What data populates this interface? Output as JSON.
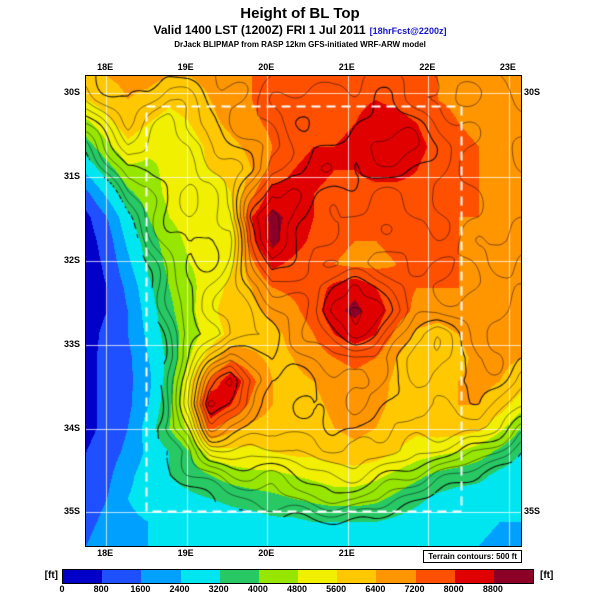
{
  "title": "Height of BL Top",
  "subtitle": {
    "main": "Valid 1400 LST (1200Z) FRI 1 Jul 2011",
    "suffix": "[18hrFcst@2200z]"
  },
  "model_line": "DrJack BLIPMAP from RASP 12km GFS-initiated WRF-ARW model",
  "map": {
    "terrain_note": "Terrain contours: 500 ft",
    "lon_ticks": [
      18,
      19,
      20,
      21,
      22,
      23
    ],
    "lon_labels_top": [
      "18E",
      "19E",
      "20E",
      "21E",
      "22E",
      "23E"
    ],
    "lon_ticks_bottom": [
      18,
      19,
      20,
      21
    ],
    "lon_labels_bottom": [
      "18E",
      "19E",
      "20E",
      "21E"
    ],
    "lat_ticks": [
      30,
      31,
      32,
      33,
      34,
      35
    ],
    "lat_labels_left": [
      "30S",
      "31S",
      "32S",
      "33S",
      "34S",
      "35S"
    ],
    "lat_ticks_right": [
      30,
      35
    ],
    "lat_labels_right": [
      "30S",
      "35S"
    ]
  },
  "colorbar": {
    "unit_left": "[ft]",
    "unit_right": "[ft]",
    "tick_labels": [
      "0",
      "800",
      "1600",
      "2400",
      "3200",
      "4000",
      "4800",
      "5600",
      "6400",
      "7200",
      "8000",
      "8800"
    ],
    "colors": [
      "#0000c8",
      "#1e50ff",
      "#00a0ff",
      "#00e6f0",
      "#28c864",
      "#96e600",
      "#f0f000",
      "#ffc800",
      "#ff9600",
      "#ff5000",
      "#e10000",
      "#8c0028"
    ]
  },
  "chart_data": {
    "type": "heatmap",
    "title": "Height of BL Top",
    "units": "ft",
    "lon_range": [
      17.75,
      23.15
    ],
    "lat_range": [
      29.8,
      35.4
    ],
    "fill_levels_ft": [
      0,
      800,
      1600,
      2400,
      3200,
      4000,
      4800,
      5600,
      6400,
      7200,
      8000,
      8800
    ],
    "terrain_contour_interval_ft": 500,
    "values_scale_ft": 100,
    "values_note": "BL top height in hundreds of feet, grid rows north(30S)->south(35S), cols west(18E)->east(23E)",
    "contour_levels": [
      32,
      36,
      40,
      44,
      48,
      52,
      56,
      60,
      64,
      68,
      72,
      76,
      80,
      84,
      88,
      92
    ],
    "values": [
      [
        62,
        64,
        66,
        66,
        64,
        64,
        66,
        70,
        72,
        74,
        74,
        74,
        74,
        76,
        76,
        74,
        72,
        72,
        70,
        70,
        68,
        66
      ],
      [
        56,
        60,
        64,
        62,
        58,
        60,
        64,
        68,
        72,
        76,
        76,
        76,
        76,
        78,
        80,
        78,
        74,
        72,
        70,
        70,
        68,
        66
      ],
      [
        46,
        54,
        60,
        56,
        52,
        56,
        62,
        66,
        70,
        74,
        78,
        78,
        78,
        80,
        84,
        84,
        80,
        76,
        72,
        70,
        68,
        66
      ],
      [
        36,
        46,
        54,
        50,
        48,
        52,
        58,
        62,
        66,
        72,
        78,
        80,
        80,
        82,
        86,
        86,
        82,
        78,
        74,
        72,
        70,
        66
      ],
      [
        26,
        36,
        46,
        46,
        50,
        54,
        56,
        58,
        64,
        74,
        80,
        82,
        80,
        80,
        82,
        82,
        80,
        76,
        74,
        72,
        70,
        68
      ],
      [
        14,
        26,
        38,
        44,
        50,
        54,
        52,
        56,
        70,
        84,
        84,
        80,
        78,
        78,
        78,
        78,
        78,
        76,
        74,
        72,
        70,
        68
      ],
      [
        6,
        16,
        30,
        40,
        48,
        52,
        50,
        54,
        80,
        90,
        86,
        80,
        76,
        76,
        76,
        76,
        76,
        74,
        72,
        72,
        70,
        68
      ],
      [
        4,
        12,
        26,
        36,
        44,
        50,
        48,
        52,
        78,
        90,
        84,
        78,
        74,
        72,
        72,
        74,
        74,
        74,
        72,
        70,
        70,
        68
      ],
      [
        3,
        10,
        22,
        34,
        42,
        48,
        50,
        54,
        70,
        82,
        78,
        74,
        72,
        70,
        70,
        72,
        74,
        74,
        72,
        70,
        68,
        68
      ],
      [
        3,
        8,
        18,
        30,
        40,
        46,
        52,
        58,
        64,
        72,
        74,
        76,
        82,
        86,
        80,
        74,
        72,
        72,
        72,
        70,
        70,
        68
      ],
      [
        4,
        8,
        16,
        28,
        38,
        46,
        54,
        60,
        62,
        66,
        70,
        76,
        86,
        90,
        84,
        76,
        70,
        68,
        70,
        70,
        70,
        68
      ],
      [
        5,
        10,
        16,
        26,
        36,
        44,
        52,
        58,
        60,
        62,
        66,
        72,
        80,
        84,
        80,
        70,
        62,
        60,
        64,
        68,
        68,
        66
      ],
      [
        6,
        10,
        14,
        24,
        34,
        48,
        60,
        70,
        66,
        62,
        64,
        68,
        72,
        74,
        72,
        64,
        58,
        58,
        62,
        66,
        66,
        64
      ],
      [
        6,
        10,
        14,
        22,
        36,
        54,
        74,
        86,
        74,
        64,
        62,
        64,
        68,
        70,
        68,
        62,
        58,
        60,
        64,
        66,
        64,
        60
      ],
      [
        6,
        10,
        14,
        24,
        38,
        56,
        88,
        80,
        70,
        64,
        62,
        62,
        66,
        68,
        66,
        62,
        60,
        62,
        64,
        64,
        60,
        52
      ],
      [
        6,
        10,
        16,
        28,
        40,
        50,
        74,
        66,
        62,
        60,
        60,
        60,
        64,
        66,
        64,
        60,
        58,
        60,
        60,
        58,
        50,
        40
      ],
      [
        8,
        12,
        18,
        26,
        32,
        40,
        52,
        54,
        54,
        56,
        58,
        58,
        60,
        62,
        60,
        56,
        52,
        50,
        48,
        44,
        38,
        32
      ],
      [
        10,
        14,
        22,
        28,
        32,
        36,
        40,
        44,
        46,
        46,
        48,
        50,
        52,
        52,
        50,
        46,
        42,
        38,
        36,
        34,
        30,
        28
      ],
      [
        12,
        16,
        24,
        28,
        28,
        30,
        32,
        34,
        36,
        38,
        40,
        42,
        44,
        44,
        42,
        38,
        34,
        30,
        28,
        28,
        26,
        26
      ],
      [
        14,
        18,
        22,
        24,
        26,
        26,
        26,
        28,
        28,
        30,
        30,
        32,
        32,
        32,
        32,
        30,
        28,
        26,
        26,
        26,
        24,
        24
      ],
      [
        16,
        20,
        22,
        24,
        24,
        24,
        24,
        26,
        26,
        26,
        28,
        28,
        28,
        28,
        28,
        28,
        26,
        26,
        24,
        24,
        22,
        22
      ]
    ]
  }
}
